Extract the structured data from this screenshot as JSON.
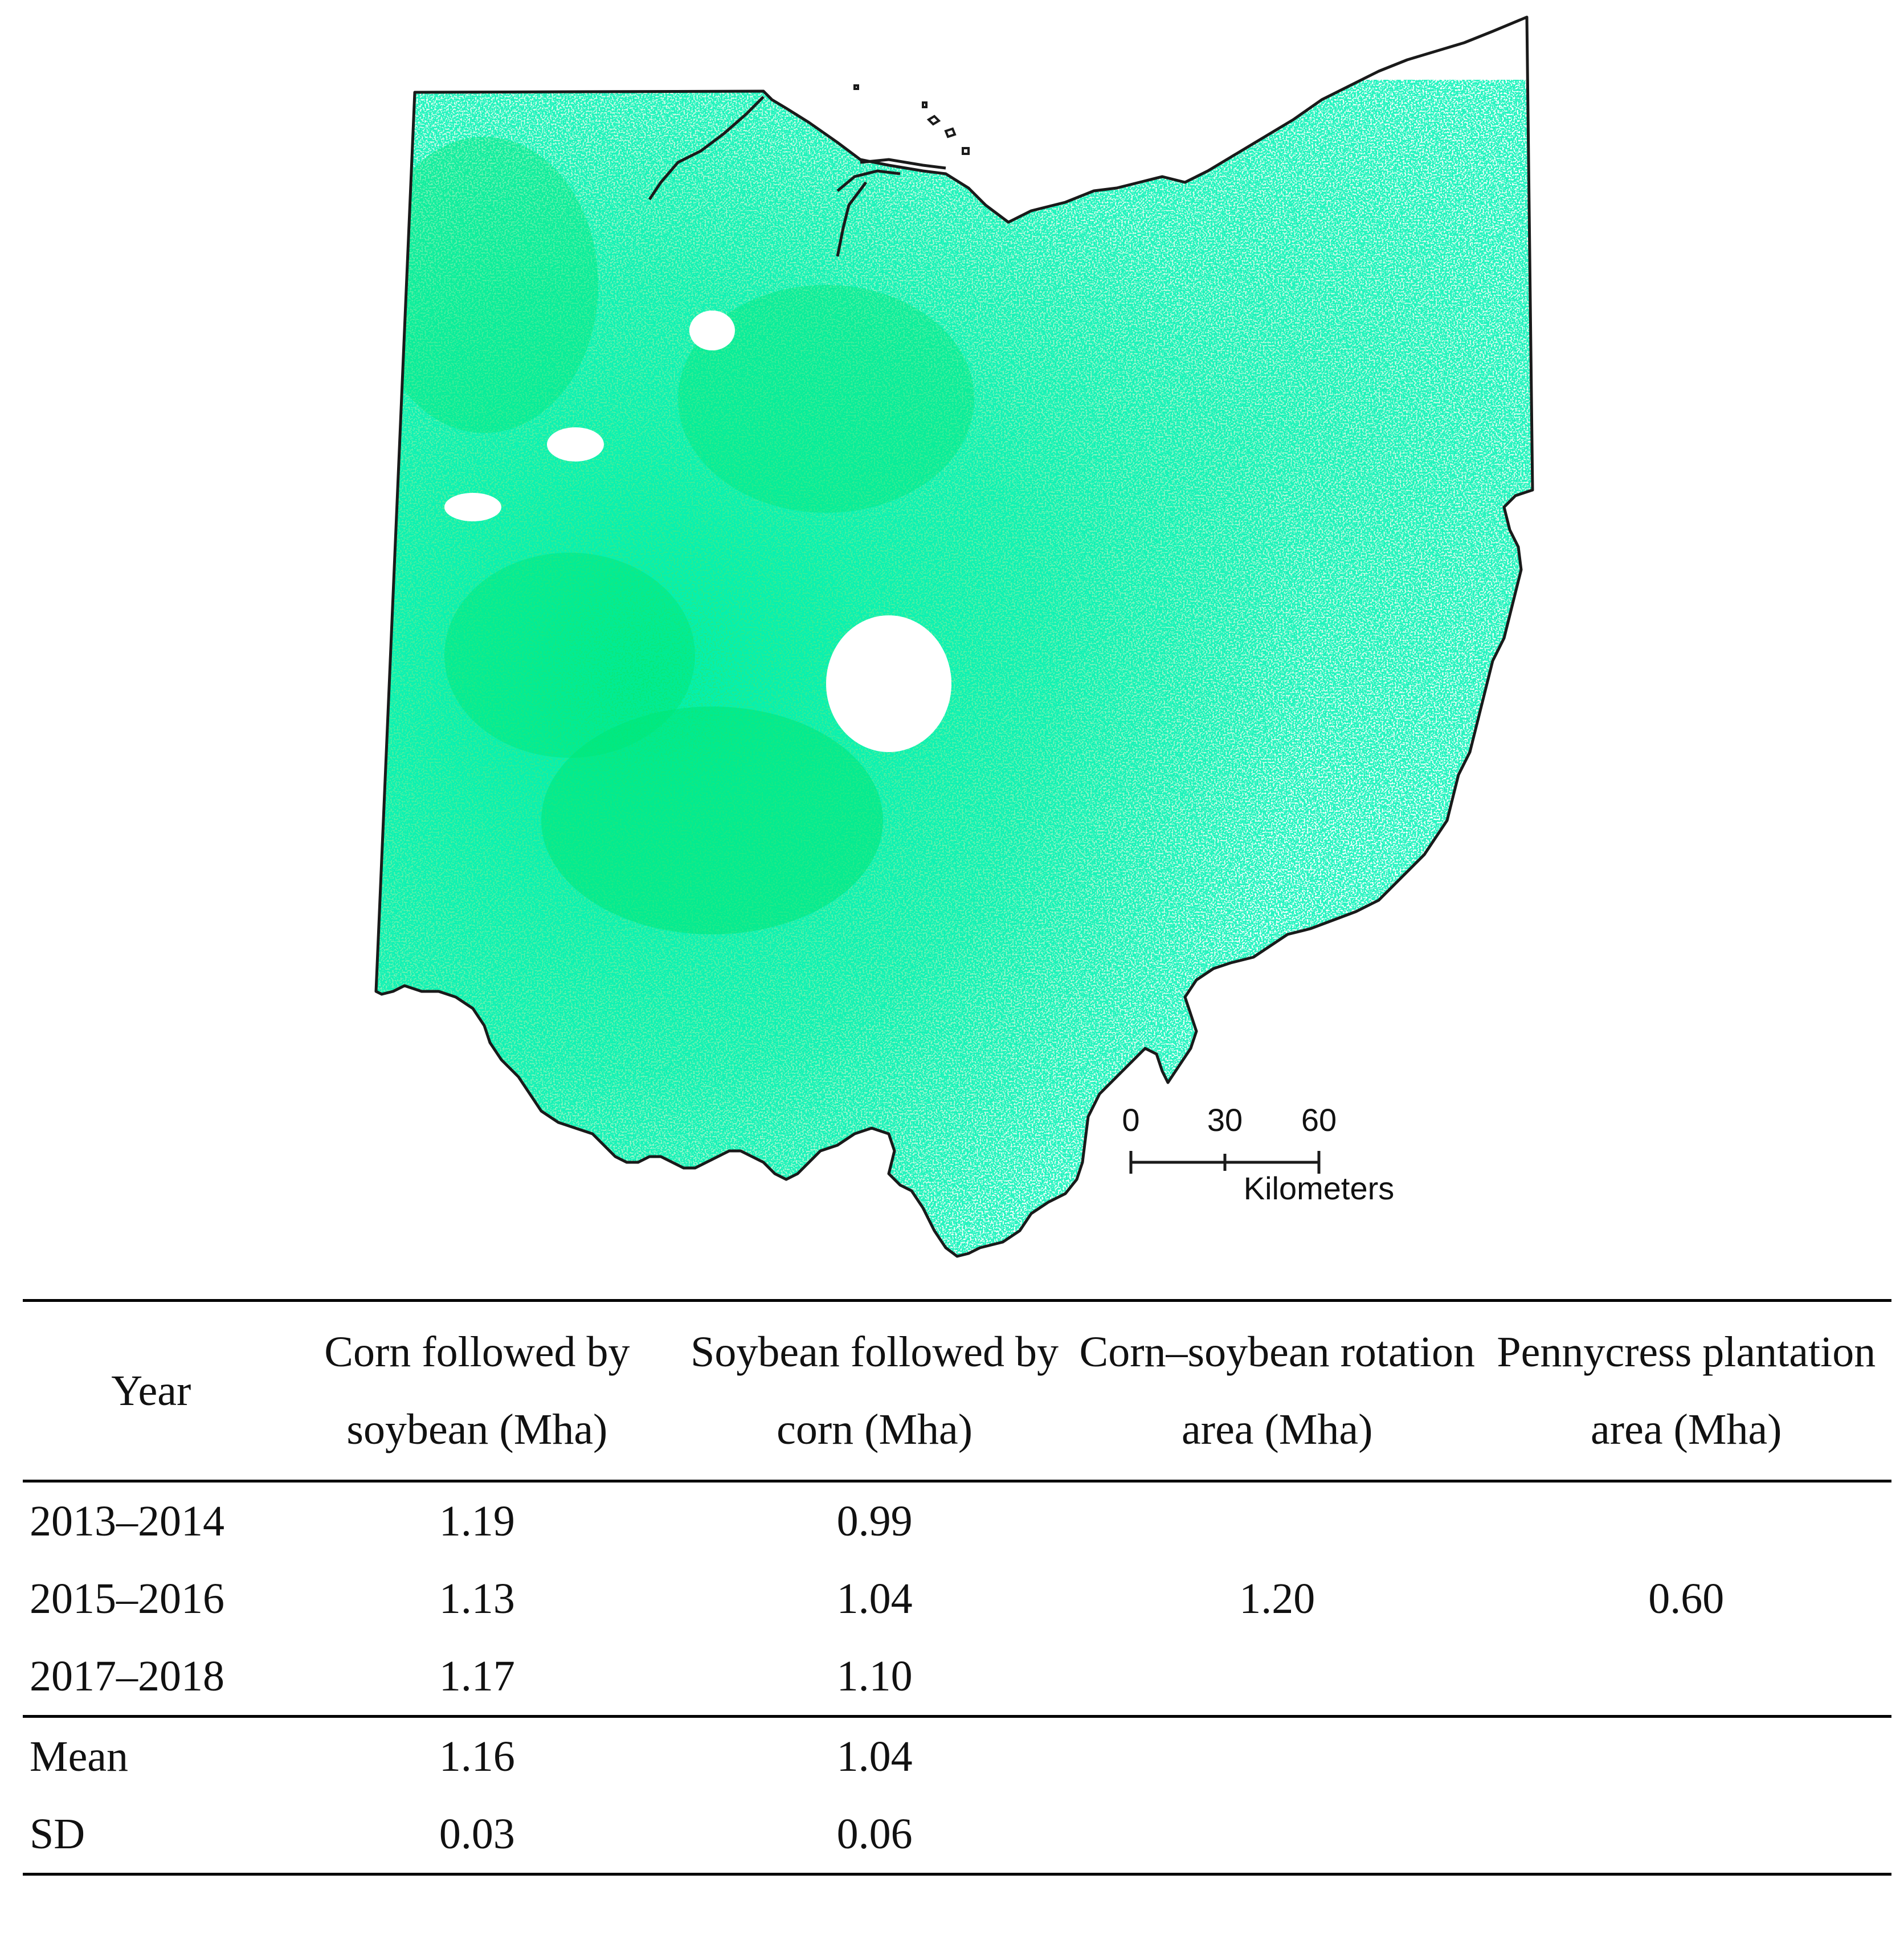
{
  "map": {
    "region_color": "#00e676",
    "border_color": "#1a1a1a",
    "scale_bar": {
      "ticks": [
        "0",
        "30",
        "60"
      ],
      "unit_label": "Kilometers"
    }
  },
  "table": {
    "headers": {
      "year": "Year",
      "corn_soy": "Corn followed by soybean (Mha)",
      "soy_corn": "Soybean followed by corn (Mha)",
      "rotation": "Corn–soybean rotation area (Mha)",
      "pennycress": "Pennycress plantation area (Mha)"
    },
    "rows": [
      {
        "year": "2013–2014",
        "corn_soy": "1.19",
        "soy_corn": "0.99"
      },
      {
        "year": "2015–2016",
        "corn_soy": "1.13",
        "soy_corn": "1.04"
      },
      {
        "year": "2017–2018",
        "corn_soy": "1.17",
        "soy_corn": "1.10"
      }
    ],
    "rotation_value": "1.20",
    "pennycress_value": "0.60",
    "stats": [
      {
        "label": "Mean",
        "corn_soy": "1.16",
        "soy_corn": "1.04"
      },
      {
        "label": "SD",
        "corn_soy": "0.03",
        "soy_corn": "0.06"
      }
    ]
  }
}
